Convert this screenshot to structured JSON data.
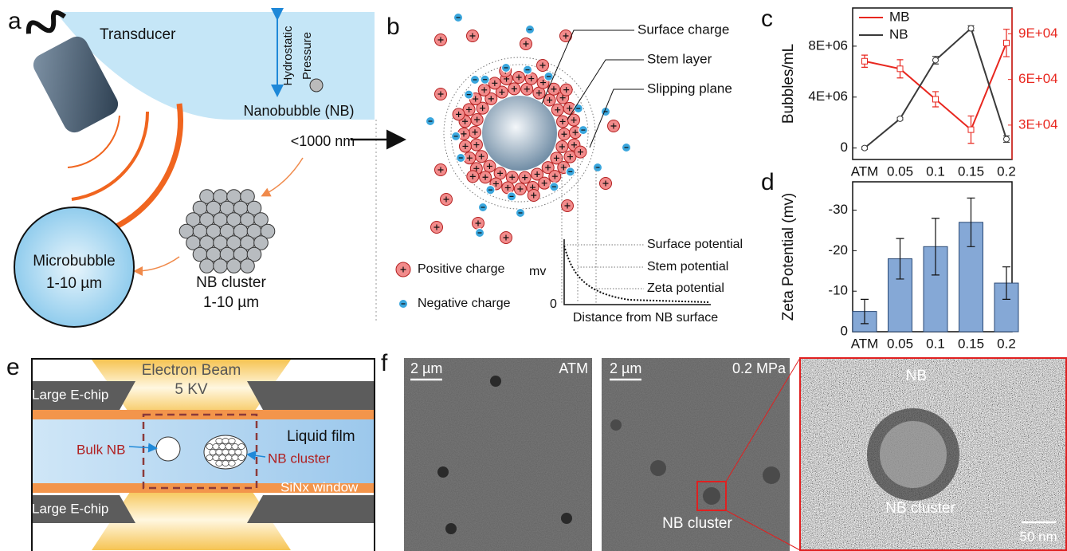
{
  "panel_labels": [
    "a",
    "b",
    "c",
    "d",
    "e",
    "f"
  ],
  "panel_a": {
    "transducer": "Transducer",
    "pressure_1": "Hydrostatic",
    "pressure_2": "Pressure",
    "nanobubble": "Nanobubble (NB)",
    "nanobubble_size": "<1000 nm",
    "cluster": "NB cluster",
    "cluster_size": "1-10 µm",
    "microbubble": "Microbubble",
    "microbubble_size": "1-10 µm"
  },
  "panel_b": {
    "surface_charge": "Surface charge",
    "stem_layer": "Stem layer",
    "slipping_plane": "Slipping plane",
    "surface_potential": "Surface potential",
    "stem_potential": "Stem potential",
    "zeta_potential": "Zeta potential",
    "y_label": "mv",
    "origin": "0",
    "x_label": "Distance from NB surface",
    "positive": "Positive charge",
    "negative": "Negative charge"
  },
  "panel_e": {
    "beam": "Electron Beam",
    "voltage": "5 KV",
    "chip_top": "Large E-chip",
    "chip_bottom": "Large E-chip",
    "liquid": "Liquid film",
    "bulk": "Bulk NB",
    "cluster": "NB cluster",
    "window": "SiNx window"
  },
  "panel_f": {
    "scale_1": "2 µm",
    "label_1": "ATM",
    "scale_2": "2 µm",
    "label_2": "0.2 MPa",
    "cluster_2": "NB cluster",
    "nb_3": "NB",
    "cluster_3": "NB cluster",
    "scale_3": "50 nm"
  },
  "chart_data": [
    {
      "type": "line",
      "y_label": "Bubbles/mL",
      "categories": [
        "ATM",
        "0.05",
        "0.1",
        "0.15",
        "0.2"
      ],
      "ylim": [
        -900000,
        11000000
      ],
      "yticks": [
        0,
        {
          "value": 4000000,
          "label": "4E+06"
        },
        {
          "value": 8000000,
          "label": "8E+06"
        }
      ],
      "y2lim": [
        7400,
        107000
      ],
      "y2ticks": [
        {
          "value": 30000,
          "label": "3E+04"
        },
        {
          "value": 60000,
          "label": "6E+04"
        },
        {
          "value": 90000,
          "label": "9E+04"
        }
      ],
      "legend": "upper left",
      "series": [
        {
          "name": "MB",
          "color": "#e8271f",
          "axis": "y2",
          "values": [
            72000,
            67000,
            47000,
            27000,
            84000
          ],
          "errors": [
            4000,
            6000,
            5000,
            9000,
            9000
          ]
        },
        {
          "name": "NB",
          "color": "#3a3a3a",
          "values": [
            0,
            2300000,
            6900000,
            9400000,
            700000
          ],
          "errors": [
            100000,
            100000,
            300000,
            200000,
            250000
          ]
        }
      ]
    },
    {
      "type": "bar",
      "y_label": "Zeta Potential (mv)",
      "categories": [
        "ATM",
        "0.05",
        "0.1",
        "0.15",
        "0.2"
      ],
      "values": [
        -5,
        -18,
        -21,
        -27,
        -12
      ],
      "errors": [
        3,
        5,
        7,
        6,
        4
      ],
      "color": "#85a8d6",
      "ylim": [
        0,
        -37
      ],
      "yticks": [
        0,
        -10,
        -20,
        -30
      ]
    }
  ]
}
